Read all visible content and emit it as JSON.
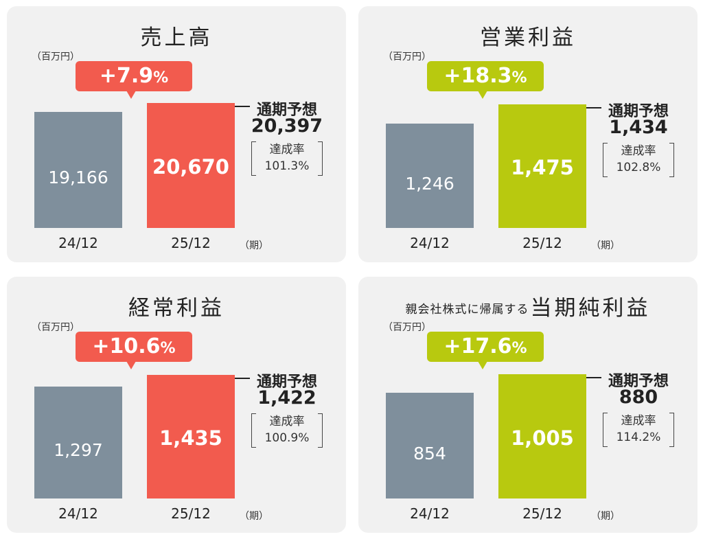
{
  "chart_data": [
    {
      "type": "bar",
      "title": "売上高",
      "unit": "（百万円）",
      "categories": [
        "24/12",
        "25/12"
      ],
      "values": [
        19166,
        20670
      ],
      "value_labels": [
        "19,166",
        "20,670"
      ],
      "period_label": "（期）",
      "growth": {
        "value": "+7.9",
        "suffix": "%"
      },
      "forecast": {
        "label": "通期予想",
        "value": 20397,
        "value_label": "20,397"
      },
      "achievement": {
        "label": "達成率",
        "rate": "101.3%"
      },
      "ylim": [
        0,
        25000
      ],
      "colors": {
        "previous": "#7f8f9c",
        "current": "#f25b4e"
      }
    },
    {
      "type": "bar",
      "title": "営業利益",
      "unit": "（百万円）",
      "categories": [
        "24/12",
        "25/12"
      ],
      "values": [
        1246,
        1475
      ],
      "value_labels": [
        "1,246",
        "1,475"
      ],
      "period_label": "（期）",
      "growth": {
        "value": "+18.3",
        "suffix": "%"
      },
      "forecast": {
        "label": "通期予想",
        "value": 1434,
        "value_label": "1,434"
      },
      "achievement": {
        "label": "達成率",
        "rate": "102.8%"
      },
      "ylim": [
        0,
        1800
      ],
      "colors": {
        "previous": "#7f8f9c",
        "current": "#b8c90f"
      }
    },
    {
      "type": "bar",
      "title": "経常利益",
      "unit": "（百万円）",
      "categories": [
        "24/12",
        "25/12"
      ],
      "values": [
        1297,
        1435
      ],
      "value_labels": [
        "1,297",
        "1,435"
      ],
      "period_label": "（期）",
      "growth": {
        "value": "+10.6",
        "suffix": "%"
      },
      "forecast": {
        "label": "通期予想",
        "value": 1422,
        "value_label": "1,422"
      },
      "achievement": {
        "label": "達成率",
        "rate": "100.9%"
      },
      "ylim": [
        0,
        1750
      ],
      "colors": {
        "previous": "#7f8f9c",
        "current": "#f25b4e"
      }
    },
    {
      "type": "bar",
      "title": "当期純利益",
      "title_prefix": "親会社株式に帰属する",
      "unit": "（百万円）",
      "categories": [
        "24/12",
        "25/12"
      ],
      "values": [
        854,
        1005
      ],
      "value_labels": [
        "854",
        "1,005"
      ],
      "period_label": "（期）",
      "growth": {
        "value": "+17.6",
        "suffix": "%"
      },
      "forecast": {
        "label": "通期予想",
        "value": 880,
        "value_label": "880"
      },
      "achievement": {
        "label": "達成率",
        "rate": "114.2%"
      },
      "ylim": [
        0,
        1220
      ],
      "colors": {
        "previous": "#7f8f9c",
        "current": "#b8c90f"
      }
    }
  ]
}
